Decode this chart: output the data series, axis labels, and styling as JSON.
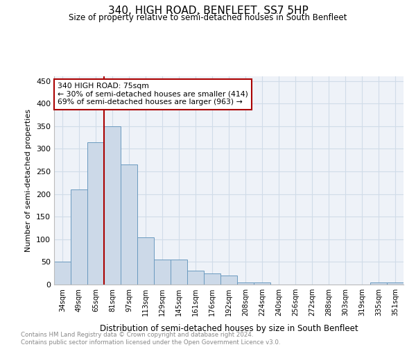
{
  "title": "340, HIGH ROAD, BENFLEET, SS7 5HP",
  "subtitle": "Size of property relative to semi-detached houses in South Benfleet",
  "xlabel": "Distribution of semi-detached houses by size in South Benfleet",
  "ylabel": "Number of semi-detached properties",
  "footnote": "Contains HM Land Registry data © Crown copyright and database right 2024.\nContains public sector information licensed under the Open Government Licence v3.0.",
  "annotation_title": "340 HIGH ROAD: 75sqm",
  "annotation_line1": "← 30% of semi-detached houses are smaller (414)",
  "annotation_line2": "69% of semi-detached houses are larger (963) →",
  "bar_facecolor": "#ccd9e8",
  "bar_edgecolor": "#6a9abf",
  "vline_color": "#aa0000",
  "vline_x": 2.5,
  "annotation_box_edgecolor": "#aa0000",
  "grid_color": "#d0dce8",
  "background_color": "#eef2f8",
  "categories": [
    "34sqm",
    "49sqm",
    "65sqm",
    "81sqm",
    "97sqm",
    "113sqm",
    "129sqm",
    "145sqm",
    "161sqm",
    "176sqm",
    "192sqm",
    "208sqm",
    "224sqm",
    "240sqm",
    "256sqm",
    "272sqm",
    "288sqm",
    "303sqm",
    "319sqm",
    "335sqm",
    "351sqm"
  ],
  "values": [
    50,
    210,
    315,
    350,
    265,
    105,
    55,
    55,
    30,
    25,
    20,
    5,
    5,
    0,
    0,
    0,
    0,
    0,
    0,
    5,
    5
  ],
  "ylim": [
    0,
    460
  ],
  "yticks": [
    0,
    50,
    100,
    150,
    200,
    250,
    300,
    350,
    400,
    450
  ]
}
